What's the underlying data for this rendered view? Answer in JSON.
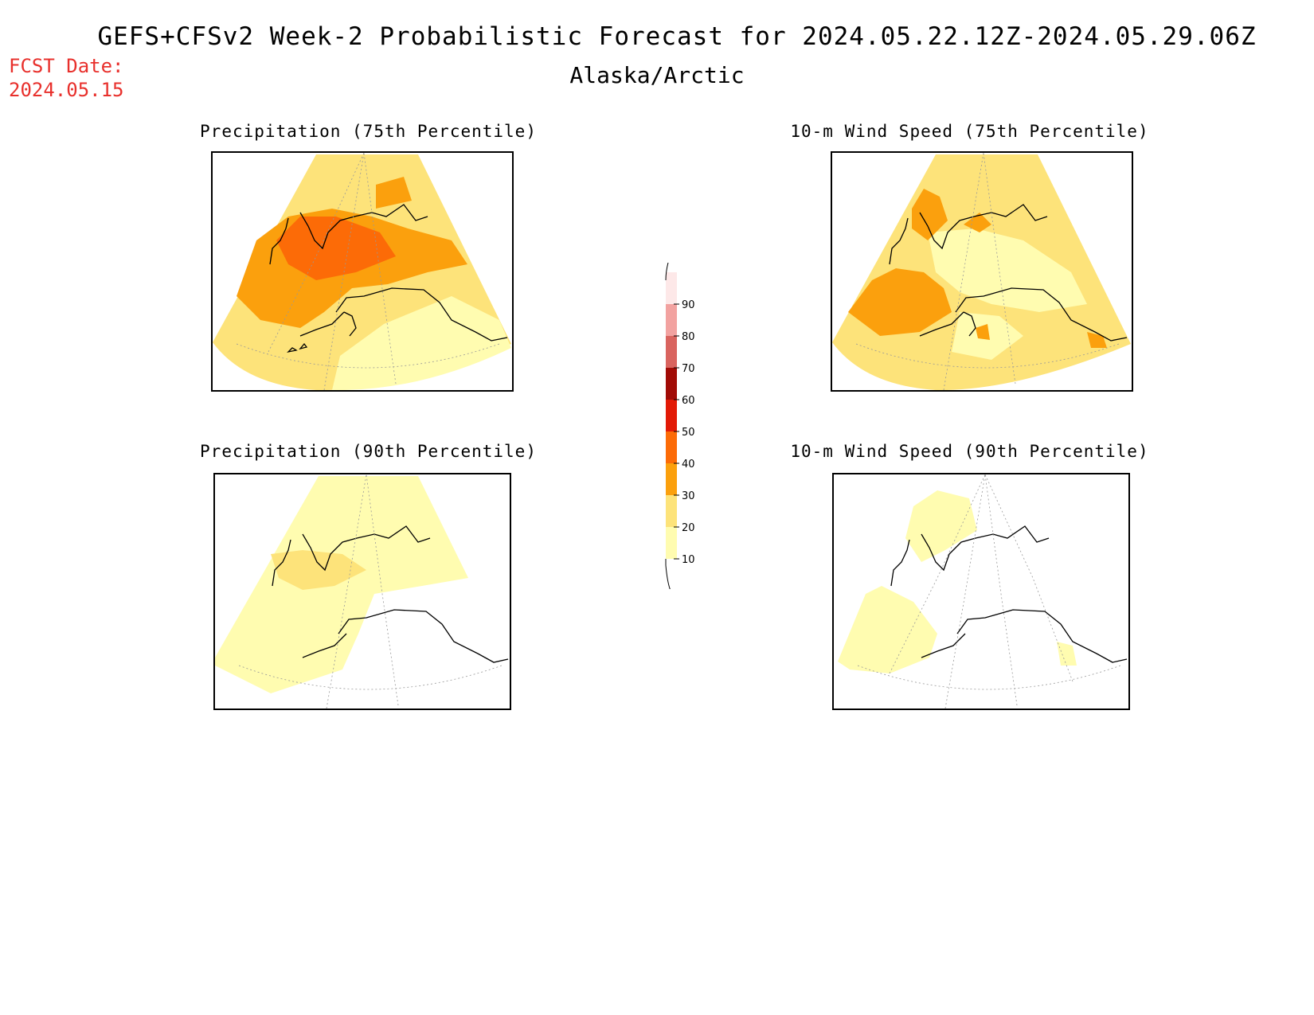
{
  "header": {
    "title": "GEFS+CFSv2 Week-2 Probabilistic Forecast for 2024.05.22.12Z-2024.05.29.06Z",
    "region": "Alaska/Arctic",
    "fcst_label": "FCST Date:",
    "fcst_date": "2024.05.15"
  },
  "panels": [
    {
      "title": "Precipitation (75th Percentile)"
    },
    {
      "title": "10-m Wind Speed (75th Percentile)"
    },
    {
      "title": "Precipitation (90th Percentile)"
    },
    {
      "title": "10-m Wind Speed (90th Percentile)"
    }
  ],
  "colorbar": {
    "levels": [
      "10",
      "20",
      "30",
      "40",
      "50",
      "60",
      "70",
      "80",
      "90"
    ],
    "colors": [
      "#fffcb0",
      "#fde37a",
      "#fba00d",
      "#fc6b07",
      "#e21a06",
      "#a10b06",
      "#d9645f",
      "#f2a2a0",
      "#fde8e8"
    ]
  }
}
